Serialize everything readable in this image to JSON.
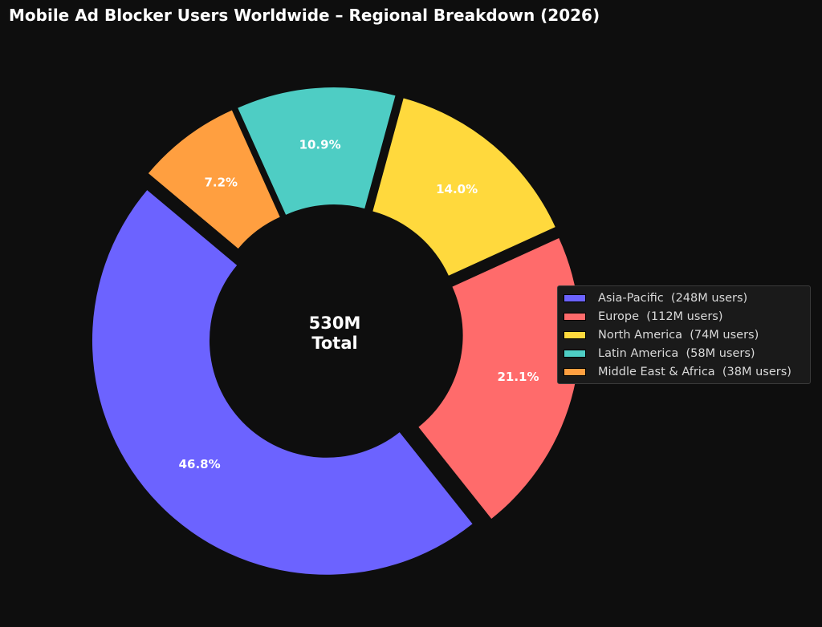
{
  "chart_data": {
    "type": "pie",
    "title": "Mobile Ad Blocker Users Worldwide – Regional Breakdown (2026)",
    "center_label": [
      "530M",
      "Total"
    ],
    "slices": [
      {
        "name": "Asia-Pacific",
        "value": 248,
        "percent_label": "46.8%",
        "legend_label": "Asia-Pacific  (248M users)",
        "color": "#6c63ff"
      },
      {
        "name": "Europe",
        "value": 112,
        "percent_label": "21.1%",
        "legend_label": "Europe  (112M users)",
        "color": "#ff6b6b"
      },
      {
        "name": "North America",
        "value": 74,
        "percent_label": "14.0%",
        "legend_label": "North America  (74M users)",
        "color": "#ffd93d"
      },
      {
        "name": "Latin America",
        "value": 58,
        "percent_label": "10.9%",
        "legend_label": "Latin America  (58M users)",
        "color": "#4ecdc4"
      },
      {
        "name": "Middle East & Africa",
        "value": 38,
        "percent_label": "7.2%",
        "legend_label": "Middle East & Africa  (38M users)",
        "color": "#ff9f40"
      }
    ],
    "legend_placement": "right"
  }
}
